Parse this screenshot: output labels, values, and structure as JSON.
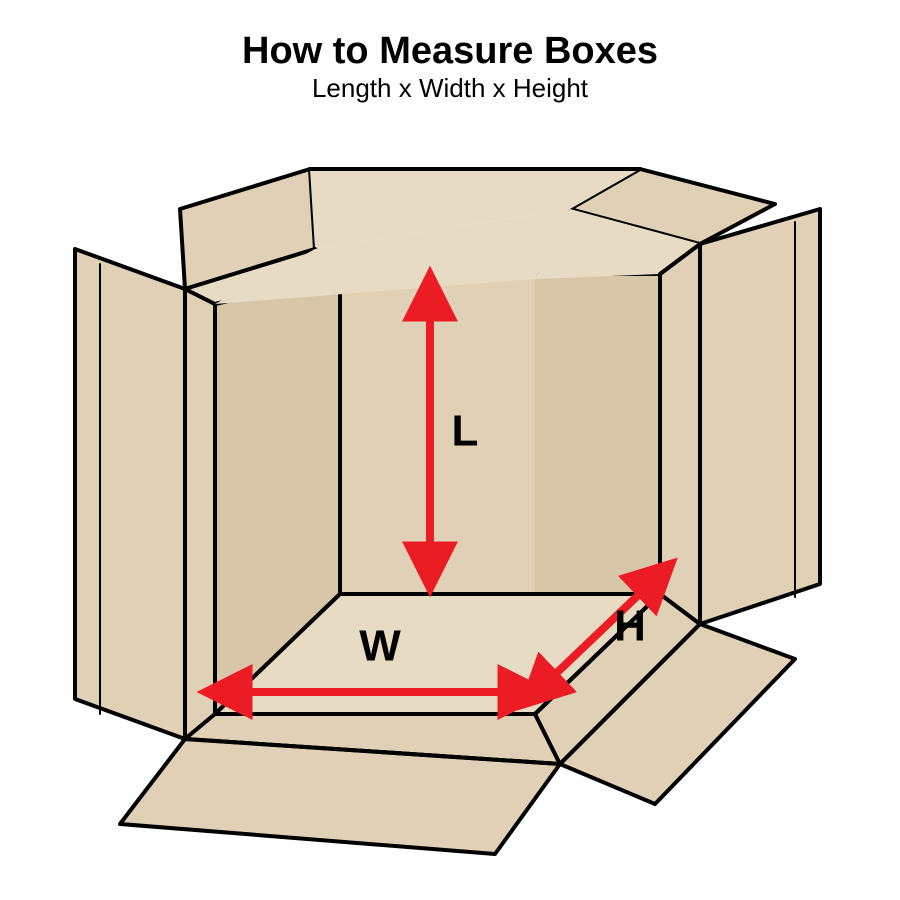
{
  "header": {
    "title": "How to Measure Boxes",
    "title_fontsize": 38,
    "subtitle": "Length x Width x Height",
    "subtitle_fontsize": 26
  },
  "diagram": {
    "type": "infographic",
    "background_color": "#ffffff",
    "box_fill_light": "#e8dbc4",
    "box_fill_mid": "#e0d1b6",
    "box_fill_dark": "#d7c6a8",
    "stroke_color": "#000000",
    "stroke_width": 4,
    "arrow_color": "#ec1c24",
    "arrow_width": 8,
    "label_color": "#000000",
    "label_fontsize": 44,
    "label_fontweight": "bold",
    "labels": {
      "length": "L",
      "width": "W",
      "height": "H"
    }
  }
}
